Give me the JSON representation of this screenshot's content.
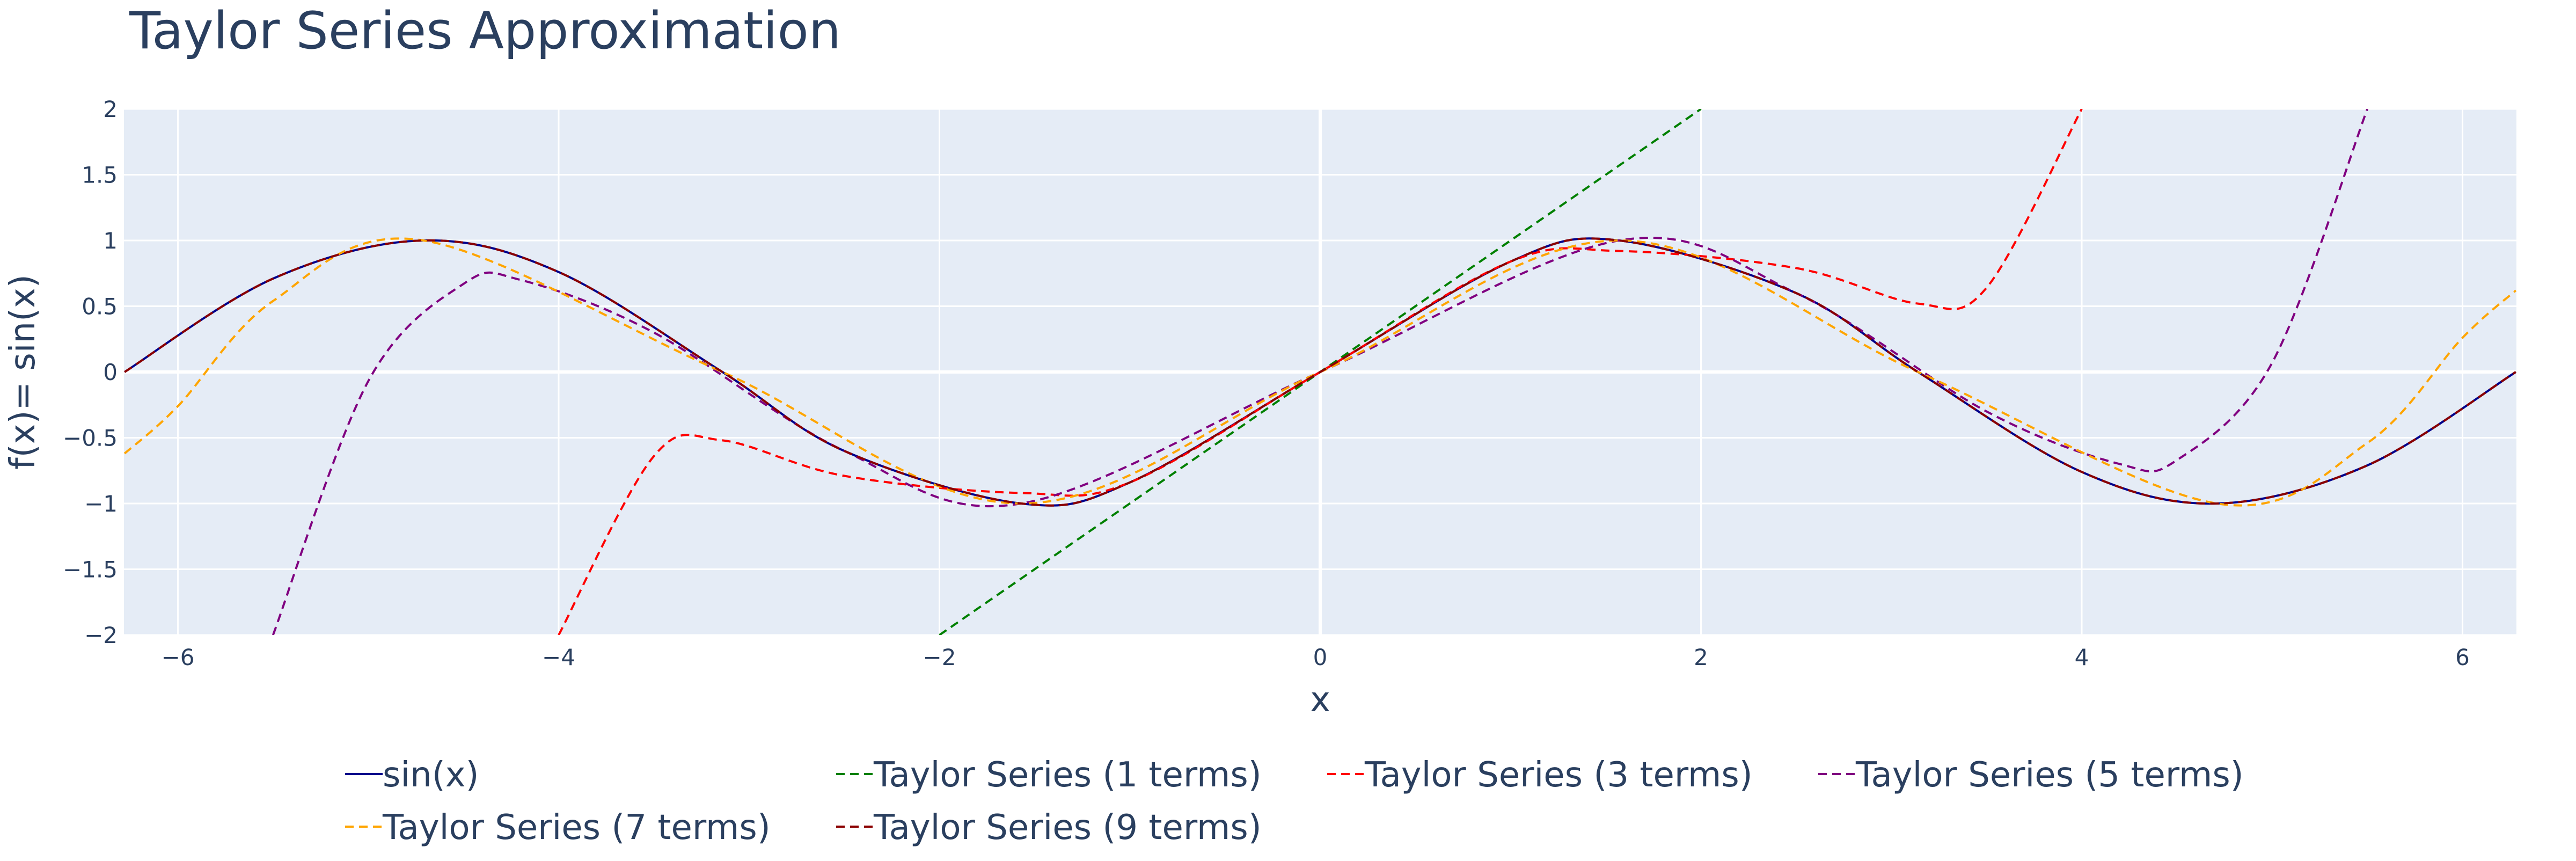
{
  "chart_data": {
    "type": "line",
    "title": "Taylor Series Approximation",
    "xlabel": "x",
    "ylabel": "f(x)= sin(x)",
    "xlim": [
      -6.2832,
      6.2832
    ],
    "ylim": [
      -2,
      2
    ],
    "x_ticks": [
      -6,
      -4,
      -2,
      0,
      2,
      4,
      6
    ],
    "x_tick_labels": [
      "−6",
      "−4",
      "−2",
      "0",
      "2",
      "4",
      "6"
    ],
    "y_ticks": [
      -2,
      -1.5,
      -1,
      -0.5,
      0,
      0.5,
      1,
      1.5,
      2
    ],
    "y_tick_labels": [
      "−2",
      "−1.5",
      "−1",
      "−0.5",
      "0",
      "0.5",
      "1",
      "1.5",
      "2"
    ],
    "grid": true,
    "plot_background": "#E5ECF6",
    "legend_position": "bottom",
    "series": [
      {
        "name": "sin(x)",
        "color": "#00008B",
        "dash": "solid",
        "x": [
          -6.28,
          -5.5,
          -4.71,
          -4.0,
          -3.14,
          -2.5,
          -1.57,
          -1.0,
          0,
          1.0,
          1.57,
          2.5,
          3.14,
          4.0,
          4.71,
          5.5,
          6.28
        ],
        "y": [
          0.0,
          0.71,
          1.0,
          0.76,
          0.0,
          -0.6,
          -1.0,
          -0.84,
          0.0,
          0.84,
          1.0,
          0.6,
          0.0,
          -0.76,
          -1.0,
          -0.71,
          0.0
        ]
      },
      {
        "name": "Taylor Series (1 terms)",
        "color": "#008000",
        "dash": "dash",
        "x": [
          -2,
          0,
          2
        ],
        "y": [
          -2,
          0,
          2
        ]
      },
      {
        "name": "Taylor Series (3 terms)",
        "color": "#FF0000",
        "dash": "dash",
        "x": [
          -4.0,
          -3.5,
          -3.14,
          -2.5,
          -1.57,
          -1.0,
          0,
          1.0,
          1.57,
          2.5,
          3.14,
          3.5,
          4.0
        ],
        "y": [
          -2.0,
          -0.64,
          -0.52,
          -0.79,
          -0.92,
          -0.84,
          0.0,
          0.84,
          0.92,
          0.79,
          0.52,
          0.64,
          2.0
        ]
      },
      {
        "name": "Taylor Series (5 terms)",
        "color": "#800080",
        "dash": "dash",
        "x": [
          -5.5,
          -5.0,
          -4.5,
          -4.2,
          -3.5,
          -2.5,
          -1.57,
          0,
          1.57,
          2.5,
          3.5,
          4.2,
          4.5,
          5.0,
          5.5
        ],
        "y": [
          -2.0,
          -0.07,
          0.67,
          0.7,
          0.3,
          -0.6,
          -1.0,
          0.0,
          1.0,
          0.6,
          -0.3,
          -0.7,
          -0.67,
          0.07,
          2.0
        ]
      },
      {
        "name": "Taylor Series (7 terms)",
        "color": "#FFA500",
        "dash": "dash",
        "x": [
          -6.28,
          -6.0,
          -5.5,
          -4.71,
          -3.14,
          -1.57,
          0,
          1.57,
          3.14,
          4.71,
          5.5,
          6.0,
          6.28
        ],
        "y": [
          -0.62,
          -0.26,
          0.54,
          1.0,
          0.0,
          -1.0,
          0.0,
          1.0,
          0.0,
          -1.0,
          -0.54,
          0.26,
          0.62
        ]
      },
      {
        "name": "Taylor Series (9 terms)",
        "color": "#8B0000",
        "dash": "dash",
        "x": [
          -6.28,
          -5.5,
          -4.71,
          -4.0,
          -3.14,
          -2.5,
          -1.57,
          -1.0,
          0,
          1.0,
          1.57,
          2.5,
          3.14,
          4.0,
          4.71,
          5.5,
          6.28
        ],
        "y": [
          0.0,
          0.71,
          1.0,
          0.76,
          0.0,
          -0.6,
          -1.0,
          -0.84,
          0.0,
          0.84,
          1.0,
          0.6,
          0.0,
          -0.76,
          -1.0,
          -0.71,
          0.0
        ]
      }
    ]
  }
}
